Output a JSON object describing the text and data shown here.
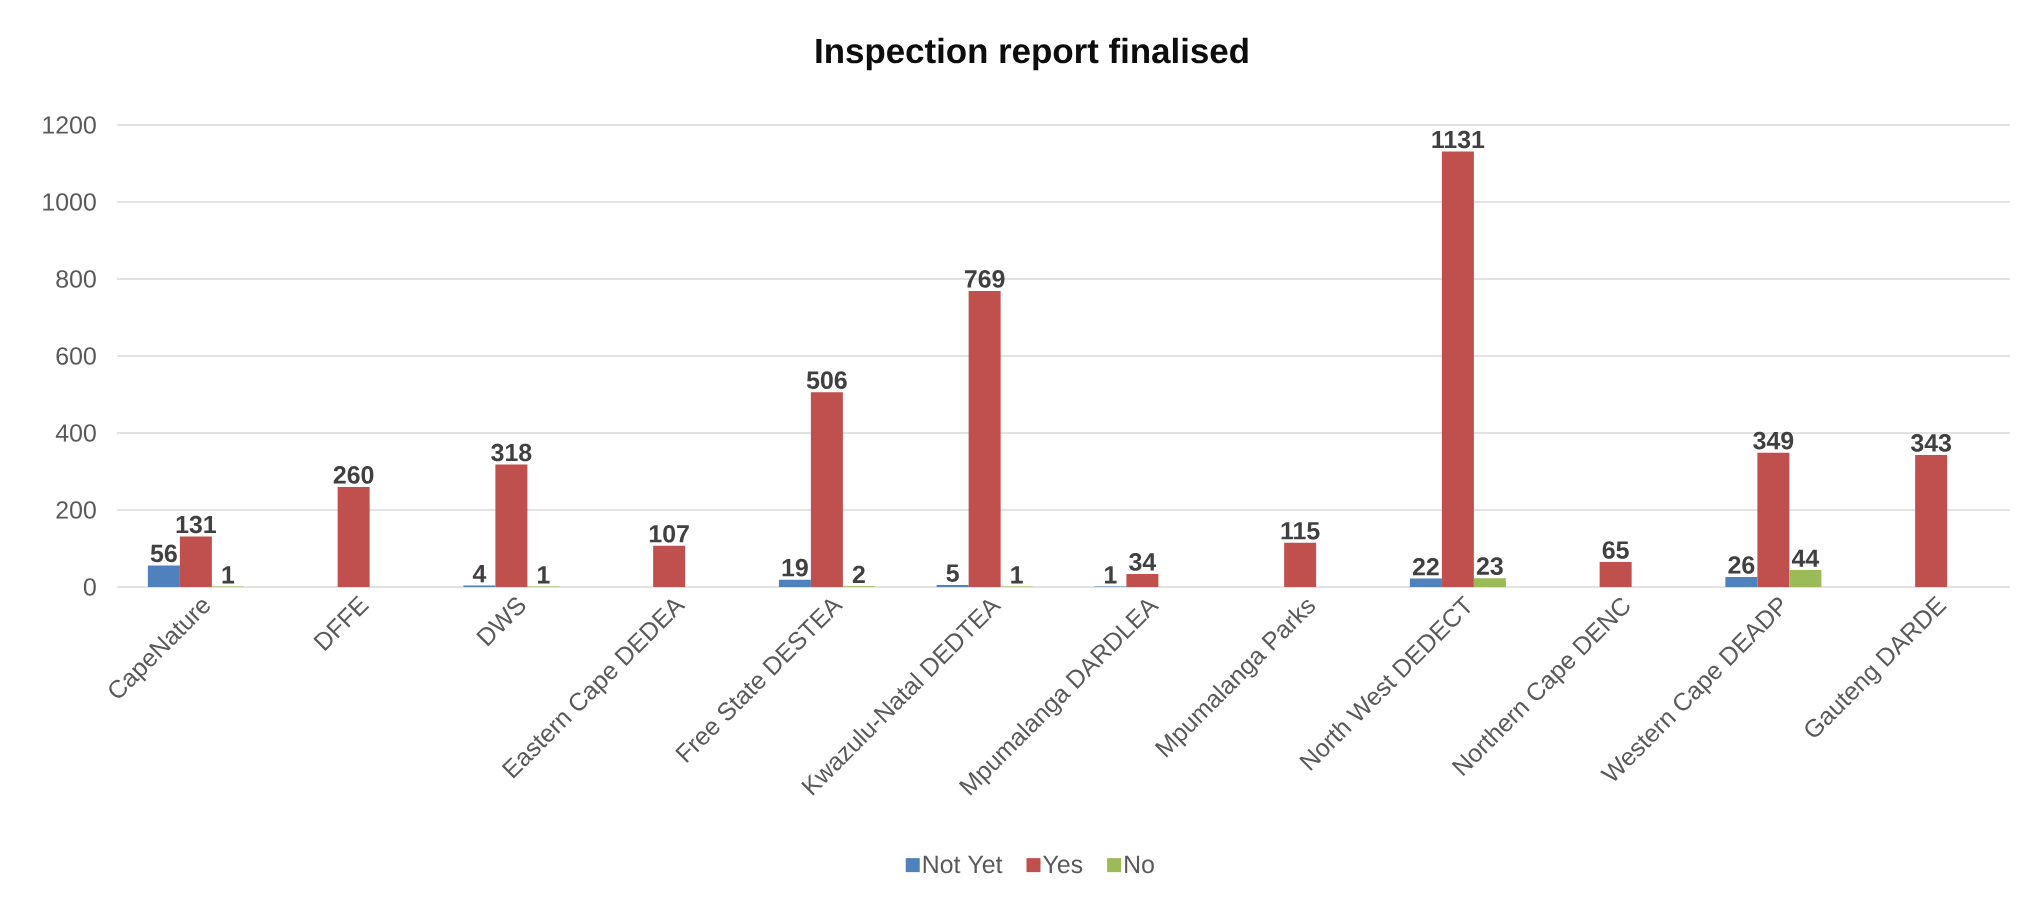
{
  "chart_data": {
    "type": "bar",
    "title": "Inspection report finalised",
    "categories": [
      "CapeNature",
      "DFFE",
      "DWS",
      "Eastern Cape DEDEA",
      "Free State DESTEA",
      "Kwazulu-Natal DEDTEA",
      "Mpumalanga DARDLEA",
      "Mpumalanga Parks",
      "North West DEDECT",
      "Northern Cape DENC",
      "Western Cape DEADP",
      "Gauteng DARDE"
    ],
    "series": [
      {
        "name": "Not Yet",
        "color": "#4f81bd",
        "values": [
          56,
          null,
          4,
          null,
          19,
          5,
          1,
          null,
          22,
          null,
          26,
          null
        ]
      },
      {
        "name": "Yes",
        "color": "#c0504d",
        "values": [
          131,
          260,
          318,
          107,
          506,
          769,
          34,
          115,
          1131,
          65,
          349,
          343
        ]
      },
      {
        "name": "No",
        "color": "#9bbb59",
        "values": [
          1,
          null,
          1,
          null,
          2,
          1,
          null,
          null,
          23,
          null,
          44,
          null
        ]
      }
    ],
    "ylim": [
      0,
      1200
    ],
    "yticks": [
      0,
      200,
      400,
      600,
      800,
      1000,
      1200
    ],
    "grid": "y",
    "legend": "bottom",
    "data_labels": true
  }
}
